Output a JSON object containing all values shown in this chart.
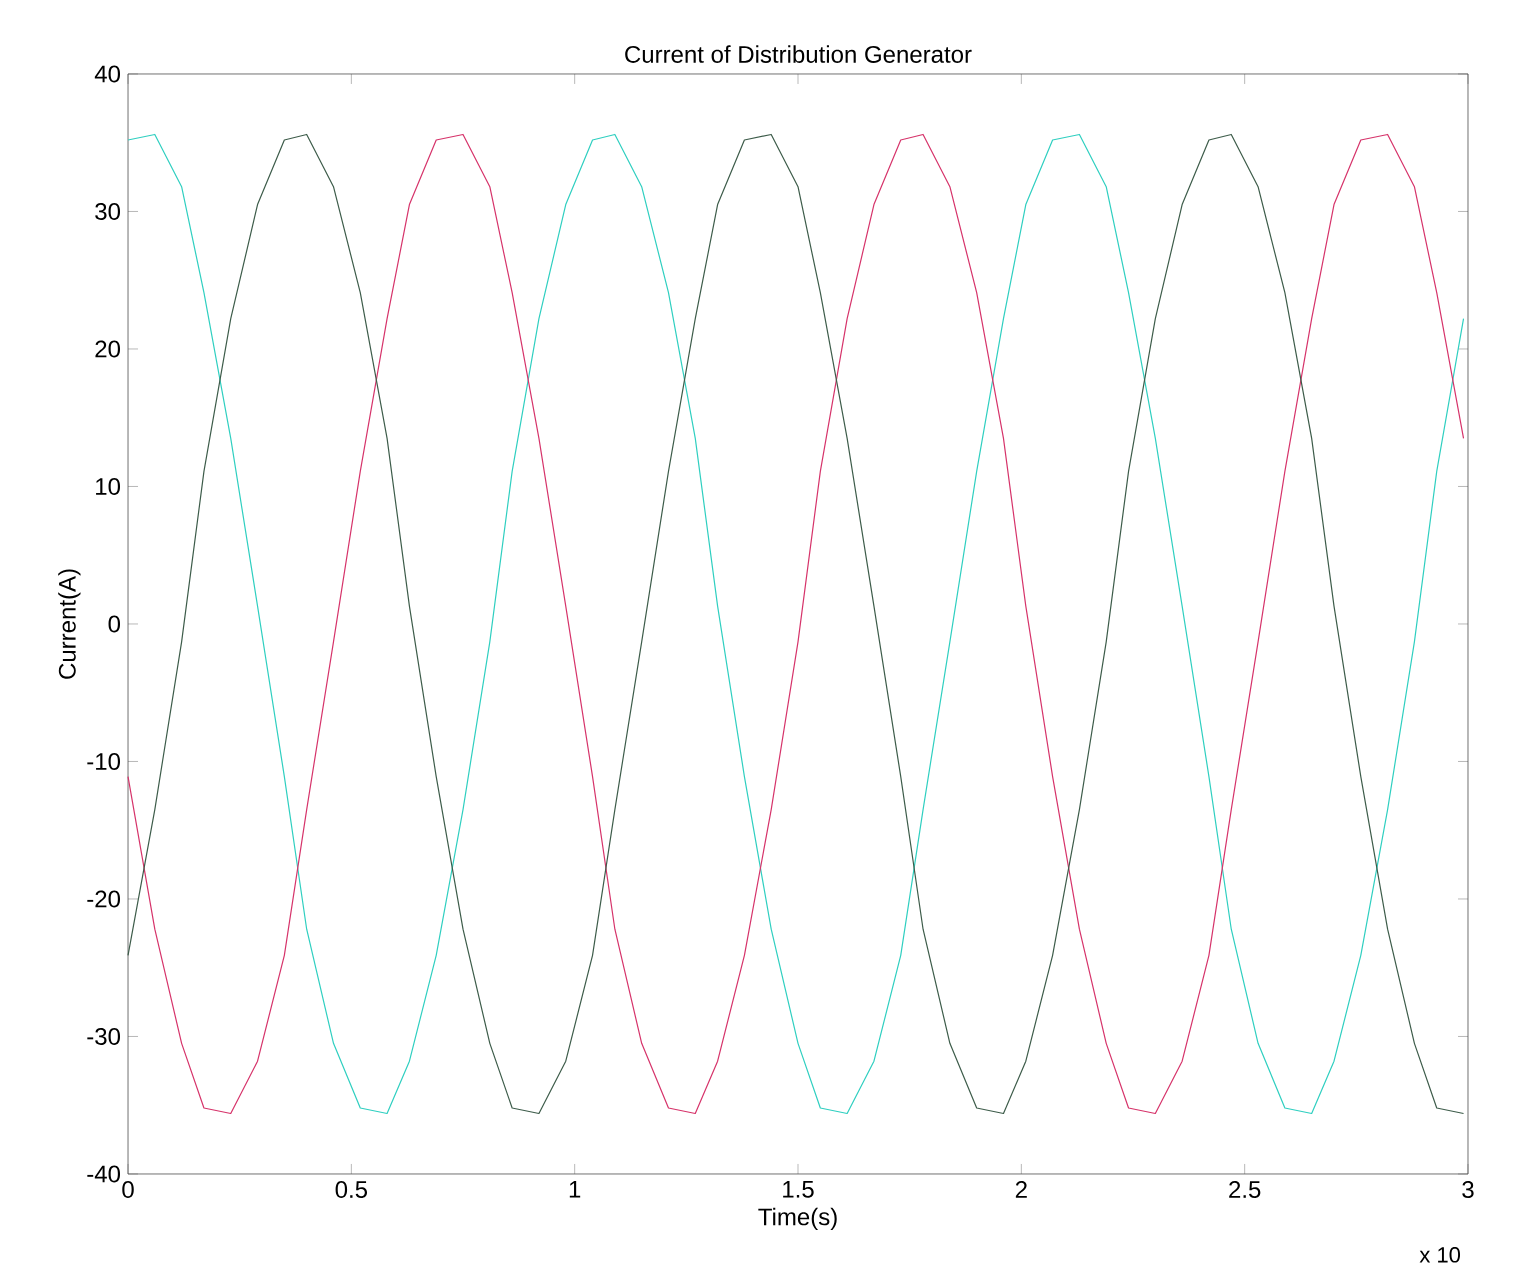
{
  "chart_data": {
    "type": "line",
    "title": "Current of Distribution Generator",
    "xlabel": "Time(s)",
    "ylabel": "Current(A)",
    "annotations": [
      "x 10"
    ],
    "xlim": [
      0,
      3
    ],
    "ylim": [
      -40,
      40
    ],
    "xticks": [
      0,
      0.5,
      1,
      1.5,
      2,
      2.5,
      3
    ],
    "yticks": [
      -40,
      -30,
      -20,
      -10,
      0,
      10,
      20,
      30,
      40
    ],
    "grid": false,
    "legend": false,
    "marker": "none",
    "line_style": "solid",
    "x": [
      0,
      0.06,
      0.12,
      0.17,
      0.23,
      0.29,
      0.35,
      0.4,
      0.46,
      0.52,
      0.58,
      0.63,
      0.69,
      0.75,
      0.81,
      0.86,
      0.92,
      0.98,
      1.04,
      1.09,
      1.15,
      1.21,
      1.27,
      1.32,
      1.38,
      1.44,
      1.5,
      1.55,
      1.61,
      1.67,
      1.73,
      1.78,
      1.84,
      1.9,
      1.96,
      2.01,
      2.07,
      2.13,
      2.19,
      2.24,
      2.3,
      2.36,
      2.42,
      2.47,
      2.53,
      2.59,
      2.65,
      2.7,
      2.76,
      2.82,
      2.88,
      2.93,
      2.99
    ],
    "series": [
      {
        "color": "#2fcfc0",
        "values": [
          35.2,
          35.6,
          31.8,
          24.1,
          13.5,
          1.3,
          -11.1,
          -22.2,
          -30.5,
          -35.2,
          -35.6,
          -31.8,
          -24.1,
          -13.5,
          -1.3,
          11.1,
          22.2,
          30.5,
          35.2,
          35.6,
          31.8,
          24.1,
          13.5,
          1.3,
          -11.1,
          -22.2,
          -30.5,
          -35.2,
          -35.6,
          -31.8,
          -24.1,
          -13.5,
          -1.3,
          11.1,
          22.2,
          30.5,
          35.2,
          35.6,
          31.8,
          24.1,
          13.5,
          1.3,
          -11.1,
          -22.2,
          -30.5,
          -35.2,
          -35.6,
          -31.8,
          -24.1,
          -13.5,
          -1.3,
          11.1,
          22.2
        ]
      },
      {
        "color": "#d6336a",
        "values": [
          -11.1,
          -22.2,
          -30.5,
          -35.2,
          -35.6,
          -31.8,
          -24.1,
          -13.5,
          -1.3,
          11.1,
          22.2,
          30.5,
          35.2,
          35.6,
          31.8,
          24.1,
          13.5,
          1.3,
          -11.1,
          -22.2,
          -30.5,
          -35.2,
          -35.6,
          -31.8,
          -24.1,
          -13.5,
          -1.3,
          11.1,
          22.2,
          30.5,
          35.2,
          35.6,
          31.8,
          24.1,
          13.5,
          1.3,
          -11.1,
          -22.2,
          -30.5,
          -35.2,
          -35.6,
          -31.8,
          -24.1,
          -13.5,
          -1.3,
          11.1,
          22.2,
          30.5,
          35.2,
          35.6,
          31.8,
          24.1,
          13.5
        ]
      },
      {
        "color": "#3d5c4a",
        "values": [
          -24.1,
          -13.5,
          -1.3,
          11.1,
          22.2,
          30.5,
          35.2,
          35.6,
          31.8,
          24.1,
          13.5,
          1.3,
          -11.1,
          -22.2,
          -30.5,
          -35.2,
          -35.6,
          -31.8,
          -24.1,
          -13.5,
          -1.3,
          11.1,
          22.2,
          30.5,
          35.2,
          35.6,
          31.8,
          24.1,
          13.5,
          1.3,
          -11.1,
          -22.2,
          -30.5,
          -35.2,
          -35.6,
          -31.8,
          -24.1,
          -13.5,
          -1.3,
          11.1,
          22.2,
          30.5,
          35.2,
          35.6,
          31.8,
          24.1,
          13.5,
          1.3,
          -11.1,
          -22.2,
          -30.5,
          -35.2,
          -35.6
        ]
      }
    ]
  }
}
